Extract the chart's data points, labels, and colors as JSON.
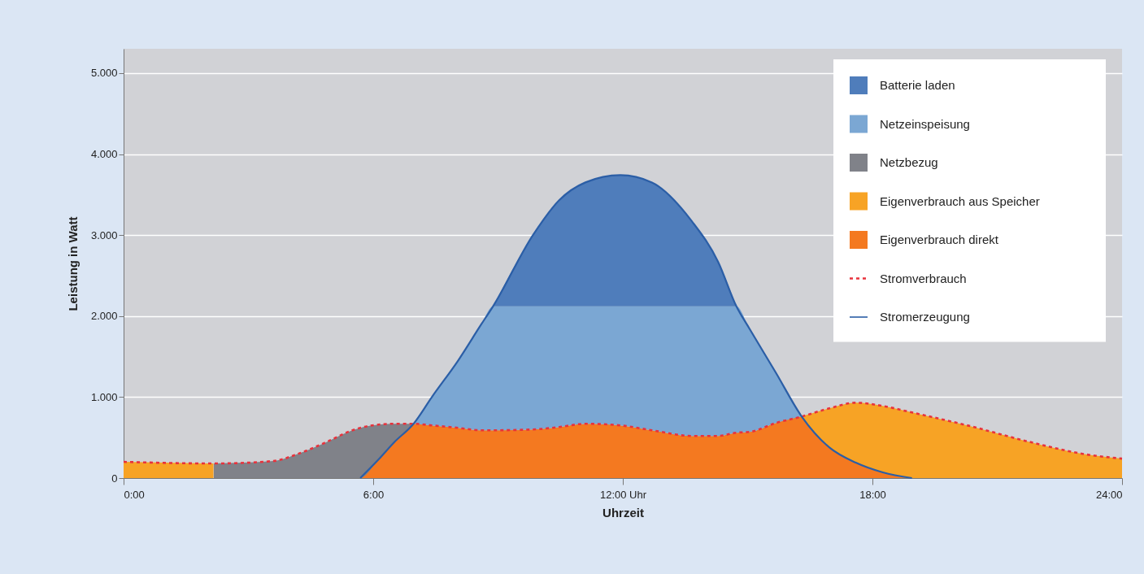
{
  "chart_data": {
    "type": "area",
    "stacked": true,
    "xlabel": "Uhrzeit",
    "ylabel": "Leistung in Watt",
    "x": [
      0,
      2.16,
      2.17,
      3.6,
      4.2,
      4.9,
      5.5,
      5.69,
      6.13,
      6.5,
      6.97,
      7.41,
      8.04,
      8.6,
      8.88,
      9.84,
      10.47,
      11.1,
      11.94,
      12.7,
      13.66,
      14.29,
      14.73,
      15.05,
      15.68,
      16.3,
      16.96,
      17.6,
      18.25,
      18.95,
      20.36,
      21.75,
      23.16,
      24
    ],
    "series": [
      {
        "name": "Eigenverbrauch direkt",
        "color": "#f47920",
        "values": [
          null,
          null,
          null,
          null,
          null,
          null,
          null,
          0,
          230,
          440,
          670,
          650,
          620,
          590,
          590,
          600,
          630,
          670,
          650,
          590,
          520,
          520,
          560,
          570,
          680,
          760,
          380,
          190,
          70,
          0,
          null,
          null,
          null,
          null
        ]
      },
      {
        "name": "Eigenverbrauch aus Speicher",
        "color": "#f7a325",
        "values": [
          200,
          180,
          null,
          null,
          null,
          null,
          null,
          null,
          null,
          null,
          null,
          null,
          null,
          null,
          null,
          null,
          null,
          null,
          null,
          null,
          null,
          null,
          null,
          null,
          null,
          0,
          480,
          740,
          820,
          810,
          640,
          450,
          290,
          240
        ]
      },
      {
        "name": "Netzbezug",
        "color": "#808289",
        "values": [
          null,
          null,
          180,
          210,
          300,
          450,
          590,
          620,
          430,
          230,
          0,
          null,
          null,
          null,
          null,
          null,
          null,
          null,
          null,
          null,
          null,
          null,
          null,
          null,
          null,
          null,
          null,
          null,
          null,
          null,
          null,
          null,
          null,
          null
        ]
      },
      {
        "name": "Netzeinspeisung",
        "color": "#7ba7d3",
        "values": [
          null,
          null,
          null,
          null,
          null,
          null,
          null,
          null,
          null,
          null,
          0,
          350,
          830,
          1310,
          1530,
          1520,
          1490,
          1450,
          1470,
          1530,
          1600,
          1600,
          1560,
          1270,
          620,
          0,
          null,
          null,
          null,
          null,
          null,
          null,
          null,
          null
        ]
      },
      {
        "name": "Batterie laden",
        "color": "#4f7dbb",
        "values": [
          null,
          null,
          null,
          null,
          null,
          null,
          null,
          null,
          null,
          null,
          null,
          null,
          null,
          null,
          0,
          880,
          1310,
          1530,
          1620,
          1530,
          1050,
          550,
          0,
          null,
          null,
          null,
          null,
          null,
          null,
          null,
          null,
          null,
          null,
          null
        ]
      },
      {
        "name": "Stromverbrauch",
        "type": "line",
        "line_style": "dotted",
        "color": "#e8323c",
        "values": [
          200,
          180,
          180,
          210,
          300,
          450,
          590,
          620,
          660,
          670,
          670,
          650,
          620,
          590,
          590,
          600,
          630,
          670,
          650,
          590,
          520,
          520,
          560,
          570,
          680,
          760,
          860,
          930,
          890,
          810,
          640,
          450,
          290,
          240
        ]
      },
      {
        "name": "Stromerzeugung",
        "type": "line",
        "line_style": "solid",
        "color": "#2b5ea6",
        "values": [
          null,
          null,
          null,
          null,
          null,
          null,
          null,
          0,
          230,
          440,
          670,
          1000,
          1450,
          1900,
          2120,
          3000,
          3430,
          3650,
          3740,
          3650,
          3170,
          2670,
          2120,
          1840,
          1300,
          760,
          380,
          190,
          70,
          0,
          null,
          null,
          null,
          null
        ]
      }
    ],
    "xlim": [
      0,
      24
    ],
    "xticks": [
      {
        "value": 0,
        "label": "0:00"
      },
      {
        "value": 6,
        "label": "6:00"
      },
      {
        "value": 12,
        "label": "12:00 Uhr"
      },
      {
        "value": 18,
        "label": "18:00"
      },
      {
        "value": 24,
        "label": "24:00"
      }
    ],
    "ylim": [
      0,
      5300
    ],
    "yticks": [
      {
        "value": 0,
        "label": "0"
      },
      {
        "value": 1000,
        "label": "1.000"
      },
      {
        "value": 2000,
        "label": "2.000"
      },
      {
        "value": 3000,
        "label": "3.000"
      },
      {
        "value": 4000,
        "label": "4.000"
      },
      {
        "value": 5000,
        "label": "5.000"
      }
    ],
    "grid": "y",
    "legend": "top right"
  }
}
